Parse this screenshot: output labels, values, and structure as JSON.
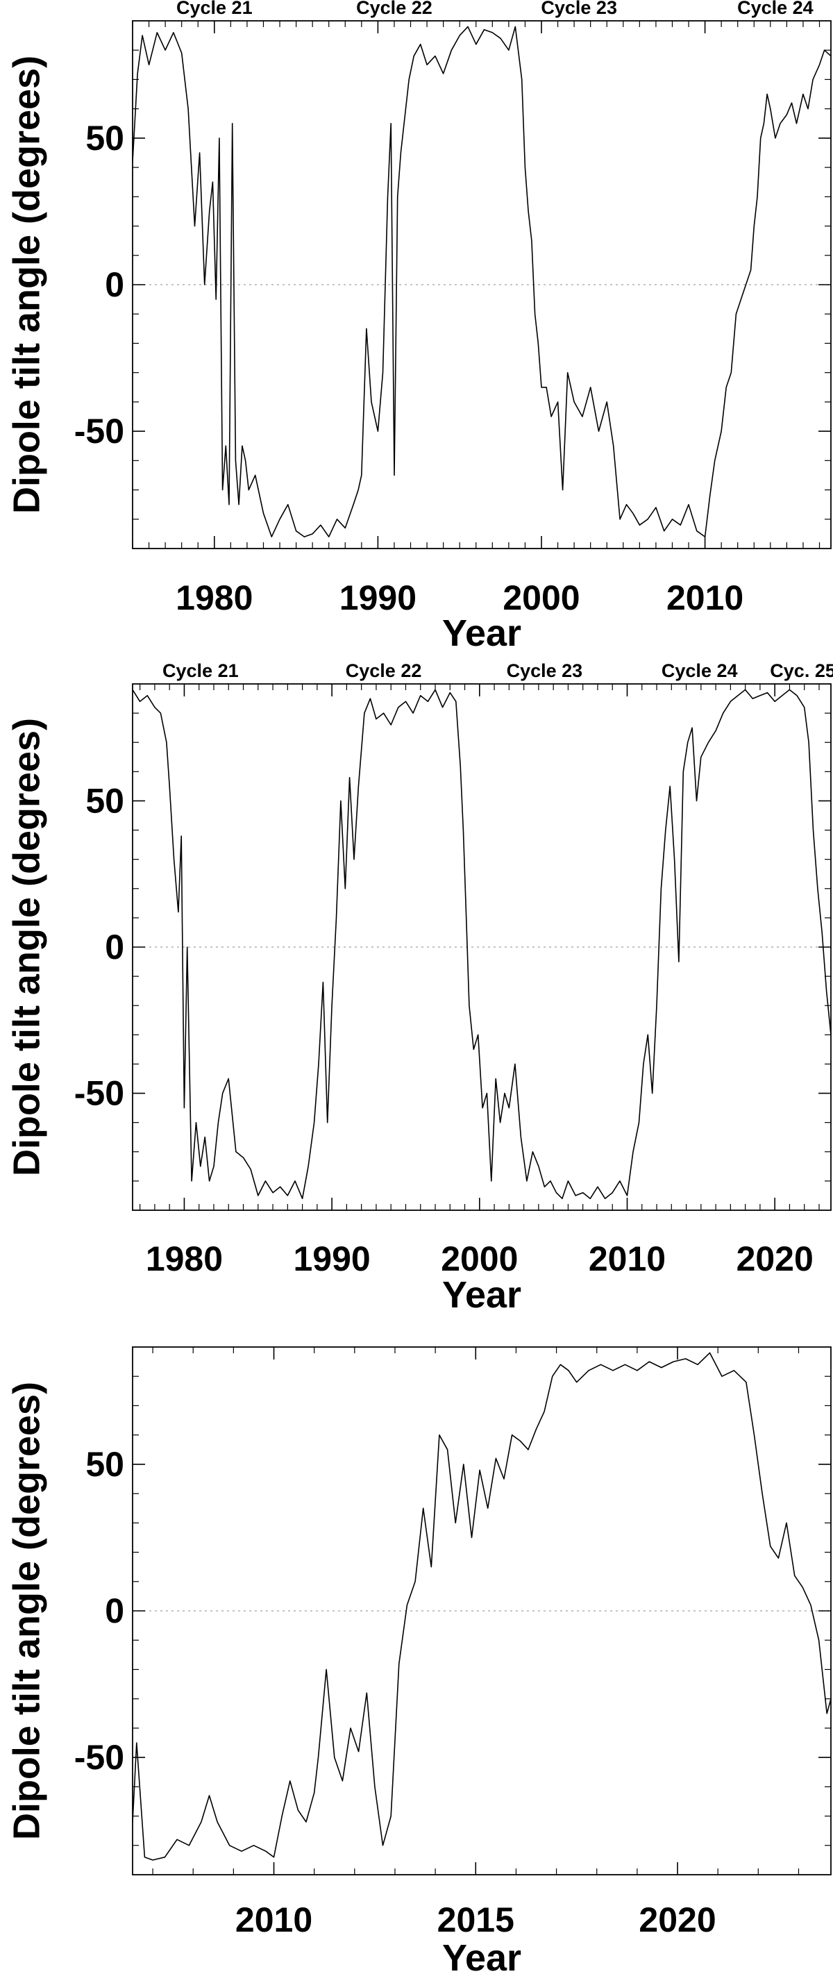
{
  "chart_data": [
    {
      "type": "line",
      "xlabel": "Year",
      "ylabel": "Dipole tilt angle (degrees)",
      "xlim": [
        1975.0,
        2017.7
      ],
      "ylim": [
        -90,
        90
      ],
      "xticks": [
        1980,
        1990,
        2000,
        2010
      ],
      "yticks": [
        -50,
        0,
        50
      ],
      "xtick_labels": [
        "1980",
        "1990",
        "2000",
        "2010"
      ],
      "ytick_labels": [
        "-50",
        "0",
        "50"
      ],
      "zero_line": true,
      "grid": false,
      "annotations": [
        {
          "text": "Cycle 21",
          "x": 1980.0
        },
        {
          "text": "Cycle 22",
          "x": 1991.0
        },
        {
          "text": "Cycle 23",
          "x": 2002.3
        },
        {
          "text": "Cycle 24",
          "x": 2014.3
        }
      ],
      "series": [
        {
          "x": [
            1975.0,
            1975.3,
            1975.6,
            1976.0,
            1976.5,
            1977.0,
            1977.5,
            1978.0,
            1978.4,
            1978.8,
            1979.1,
            1979.4,
            1979.7,
            1979.9,
            1980.1,
            1980.3,
            1980.5,
            1980.7,
            1980.9,
            1981.1,
            1981.3,
            1981.5,
            1981.7,
            1981.9,
            1982.1,
            1982.5,
            1983.0,
            1983.5,
            1984.0,
            1984.5,
            1985.0,
            1985.5,
            1986.0,
            1986.5,
            1987.0,
            1987.5,
            1988.0,
            1988.5,
            1988.8,
            1989.0,
            1989.3,
            1989.6,
            1990.0,
            1990.3,
            1990.6,
            1990.8,
            1991.0,
            1991.2,
            1991.4,
            1991.6,
            1991.9,
            1992.2,
            1992.6,
            1993.0,
            1993.5,
            1994.0,
            1994.5,
            1995.0,
            1995.5,
            1996.0,
            1996.5,
            1997.0,
            1997.5,
            1998.0,
            1998.4,
            1998.8,
            1999.0,
            1999.2,
            1999.4,
            1999.6,
            1999.8,
            2000.0,
            2000.3,
            2000.6,
            2001.0,
            2001.3,
            2001.6,
            2002.0,
            2002.5,
            2003.0,
            2003.5,
            2004.0,
            2004.4,
            2004.8,
            2005.2,
            2005.6,
            2006.0,
            2006.5,
            2007.0,
            2007.5,
            2008.0,
            2008.5,
            2009.0,
            2009.5,
            2010.0,
            2010.3,
            2010.6,
            2011.0,
            2011.3,
            2011.6,
            2011.9,
            2012.2,
            2012.5,
            2012.8,
            2013.0,
            2013.2,
            2013.4,
            2013.6,
            2013.8,
            2014.0,
            2014.3,
            2014.6,
            2015.0,
            2015.3,
            2015.6,
            2016.0,
            2016.3,
            2016.6,
            2017.0,
            2017.3,
            2017.7
          ],
          "y": [
            42,
            72,
            85,
            75,
            86,
            80,
            86,
            79,
            60,
            20,
            45,
            0,
            25,
            35,
            -5,
            50,
            -70,
            -55,
            -75,
            55,
            -60,
            -75,
            -55,
            -60,
            -70,
            -65,
            -78,
            -86,
            -80,
            -75,
            -84,
            -86,
            -85,
            -82,
            -86,
            -80,
            -83,
            -75,
            -70,
            -65,
            -15,
            -40,
            -50,
            -30,
            30,
            55,
            -65,
            30,
            45,
            55,
            70,
            78,
            82,
            75,
            78,
            72,
            80,
            85,
            88,
            82,
            87,
            86,
            84,
            80,
            88,
            70,
            40,
            25,
            15,
            -10,
            -20,
            -35,
            -35,
            -45,
            -40,
            -70,
            -30,
            -40,
            -45,
            -35,
            -50,
            -40,
            -55,
            -80,
            -75,
            -78,
            -82,
            -80,
            -76,
            -84,
            -80,
            -82,
            -75,
            -84,
            -86,
            -72,
            -60,
            -50,
            -35,
            -30,
            -10,
            -5,
            0,
            5,
            20,
            30,
            50,
            55,
            65,
            60,
            50,
            55,
            58,
            62,
            55,
            65,
            60,
            70,
            75,
            80,
            78
          ]
        }
      ]
    },
    {
      "type": "line",
      "xlabel": "Year",
      "ylabel": "Dipole tilt angle (degrees)",
      "xlim": [
        1976.5,
        2023.8
      ],
      "ylim": [
        -90,
        90
      ],
      "xticks": [
        1980,
        1990,
        2000,
        2010,
        2020
      ],
      "yticks": [
        -50,
        0,
        50
      ],
      "xtick_labels": [
        "1980",
        "1990",
        "2000",
        "2010",
        "2020"
      ],
      "ytick_labels": [
        "-50",
        "0",
        "50"
      ],
      "zero_line": true,
      "grid": false,
      "annotations": [
        {
          "text": "Cycle 21",
          "x": 1981.1
        },
        {
          "text": "Cycle 22",
          "x": 1993.5
        },
        {
          "text": "Cycle 23",
          "x": 2004.4
        },
        {
          "text": "Cycle 24",
          "x": 2014.9
        },
        {
          "text": "Cyc. 25",
          "x": 2021.9
        }
      ],
      "series": [
        {
          "x": [
            1976.5,
            1977.0,
            1977.5,
            1978.0,
            1978.4,
            1978.8,
            1979.0,
            1979.3,
            1979.6,
            1979.8,
            1980.0,
            1980.2,
            1980.5,
            1980.8,
            1981.1,
            1981.4,
            1981.7,
            1982.0,
            1982.3,
            1982.6,
            1983.0,
            1983.5,
            1984.0,
            1984.5,
            1985.0,
            1985.5,
            1986.0,
            1986.5,
            1987.0,
            1987.5,
            1988.0,
            1988.4,
            1988.8,
            1989.1,
            1989.4,
            1989.7,
            1990.0,
            1990.3,
            1990.6,
            1990.9,
            1991.2,
            1991.5,
            1991.8,
            1992.2,
            1992.6,
            1993.0,
            1993.5,
            1994.0,
            1994.5,
            1995.0,
            1995.5,
            1996.0,
            1996.5,
            1997.0,
            1997.5,
            1998.0,
            1998.4,
            1998.7,
            1998.9,
            1999.1,
            1999.3,
            1999.6,
            1999.9,
            2000.2,
            2000.5,
            2000.8,
            2001.1,
            2001.4,
            2001.7,
            2002.0,
            2002.4,
            2002.8,
            2003.2,
            2003.6,
            2004.0,
            2004.4,
            2004.8,
            2005.2,
            2005.6,
            2006.0,
            2006.5,
            2007.0,
            2007.5,
            2008.0,
            2008.5,
            2009.0,
            2009.5,
            2010.0,
            2010.4,
            2010.8,
            2011.1,
            2011.4,
            2011.7,
            2012.0,
            2012.3,
            2012.6,
            2012.9,
            2013.2,
            2013.5,
            2013.8,
            2014.1,
            2014.4,
            2014.7,
            2015.0,
            2015.5,
            2016.0,
            2016.5,
            2017.0,
            2017.5,
            2018.0,
            2018.5,
            2019.0,
            2019.5,
            2020.0,
            2020.5,
            2021.0,
            2021.5,
            2022.0,
            2022.3,
            2022.6,
            2022.9,
            2023.2,
            2023.5,
            2023.8
          ],
          "y": [
            88,
            84,
            86,
            82,
            80,
            70,
            55,
            30,
            12,
            38,
            -55,
            0,
            -80,
            -60,
            -75,
            -65,
            -80,
            -75,
            -60,
            -50,
            -45,
            -70,
            -72,
            -76,
            -85,
            -80,
            -84,
            -82,
            -85,
            -80,
            -86,
            -75,
            -60,
            -40,
            -12,
            -60,
            -20,
            10,
            50,
            20,
            58,
            30,
            55,
            80,
            85,
            78,
            80,
            76,
            82,
            84,
            80,
            86,
            84,
            88,
            82,
            87,
            84,
            62,
            40,
            10,
            -20,
            -35,
            -30,
            -55,
            -50,
            -80,
            -45,
            -60,
            -50,
            -55,
            -40,
            -65,
            -80,
            -70,
            -75,
            -82,
            -80,
            -84,
            -86,
            -80,
            -85,
            -84,
            -86,
            -82,
            -86,
            -84,
            -80,
            -85,
            -70,
            -60,
            -40,
            -30,
            -50,
            -20,
            20,
            40,
            55,
            30,
            -5,
            60,
            70,
            75,
            50,
            65,
            70,
            74,
            80,
            84,
            86,
            88,
            85,
            86,
            87,
            84,
            86,
            88,
            86,
            82,
            70,
            40,
            20,
            5,
            -15,
            -30
          ]
        }
      ]
    },
    {
      "type": "line",
      "xlabel": "Year",
      "ylabel": "Dipole tilt angle (degrees)",
      "xlim": [
        2006.5,
        2023.8
      ],
      "ylim": [
        -90,
        90
      ],
      "xticks": [
        2010,
        2015,
        2020
      ],
      "yticks": [
        -50,
        0,
        50
      ],
      "xtick_labels": [
        "2010",
        "2015",
        "2020"
      ],
      "ytick_labels": [
        "-50",
        "0",
        "50"
      ],
      "zero_line": true,
      "grid": false,
      "annotations": [],
      "series": [
        {
          "x": [
            2006.5,
            2006.6,
            2006.8,
            2007.0,
            2007.3,
            2007.6,
            2007.9,
            2008.2,
            2008.4,
            2008.6,
            2008.9,
            2009.2,
            2009.5,
            2009.8,
            2010.0,
            2010.2,
            2010.4,
            2010.6,
            2010.8,
            2011.0,
            2011.1,
            2011.3,
            2011.5,
            2011.7,
            2011.9,
            2012.1,
            2012.3,
            2012.5,
            2012.7,
            2012.9,
            2013.1,
            2013.3,
            2013.5,
            2013.7,
            2013.9,
            2014.1,
            2014.3,
            2014.5,
            2014.7,
            2014.9,
            2015.1,
            2015.3,
            2015.5,
            2015.7,
            2015.9,
            2016.1,
            2016.3,
            2016.5,
            2016.7,
            2016.9,
            2017.1,
            2017.3,
            2017.5,
            2017.8,
            2018.1,
            2018.4,
            2018.7,
            2019.0,
            2019.3,
            2019.6,
            2019.9,
            2020.2,
            2020.5,
            2020.8,
            2021.1,
            2021.4,
            2021.7,
            2021.9,
            2022.1,
            2022.3,
            2022.5,
            2022.7,
            2022.9,
            2023.1,
            2023.3,
            2023.5,
            2023.7,
            2023.8
          ],
          "y": [
            -72,
            -45,
            -84,
            -85,
            -84,
            -78,
            -80,
            -72,
            -63,
            -72,
            -80,
            -82,
            -80,
            -82,
            -84,
            -70,
            -58,
            -68,
            -72,
            -62,
            -50,
            -20,
            -50,
            -58,
            -40,
            -48,
            -28,
            -60,
            -80,
            -70,
            -18,
            2,
            10,
            35,
            15,
            60,
            55,
            30,
            50,
            25,
            48,
            35,
            52,
            45,
            60,
            58,
            55,
            62,
            68,
            80,
            84,
            82,
            78,
            82,
            84,
            82,
            84,
            82,
            85,
            83,
            85,
            86,
            84,
            88,
            80,
            82,
            78,
            60,
            40,
            22,
            18,
            30,
            12,
            8,
            2,
            -10,
            -35,
            -30
          ]
        }
      ]
    }
  ]
}
